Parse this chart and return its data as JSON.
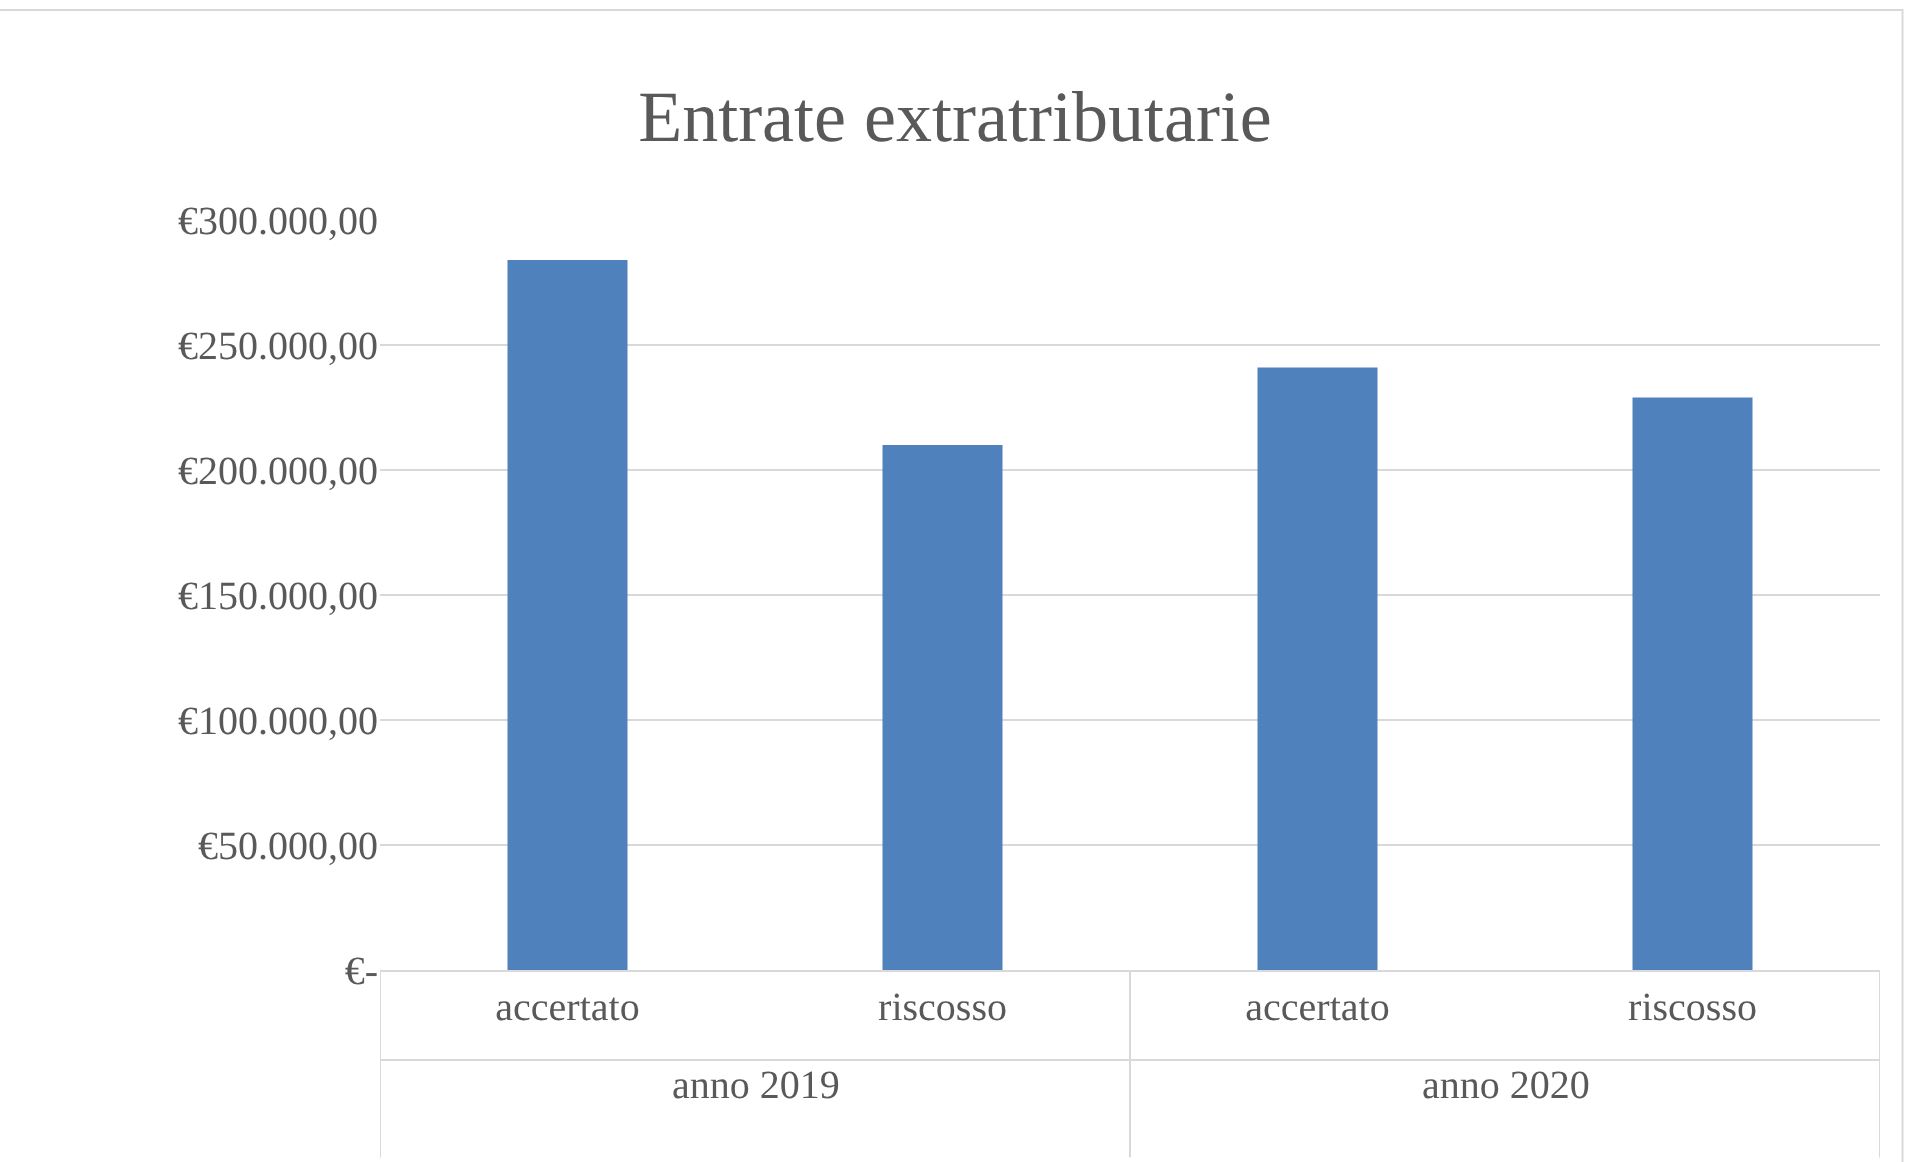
{
  "chart_data": {
    "type": "bar",
    "title": "Entrate extratributarie",
    "categories": [
      "accertato",
      "riscosso",
      "accertato",
      "riscosso"
    ],
    "values": [
      284000,
      210000,
      241000,
      229000
    ],
    "color": "#4f81bd",
    "ylim": [
      0,
      300000
    ],
    "yticks": [
      {
        "value": 0,
        "label": "€-"
      },
      {
        "value": 50000,
        "label": "€50.000,00"
      },
      {
        "value": 100000,
        "label": "€100.000,00"
      },
      {
        "value": 150000,
        "label": "€150.000,00"
      },
      {
        "value": 200000,
        "label": "€200.000,00"
      },
      {
        "value": 250000,
        "label": "€250.000,00"
      },
      {
        "value": 300000,
        "label": "€300.000,00"
      }
    ],
    "grid": "y",
    "legend": false,
    "annotations": [
      "anno 2019",
      "anno 2020"
    ]
  }
}
